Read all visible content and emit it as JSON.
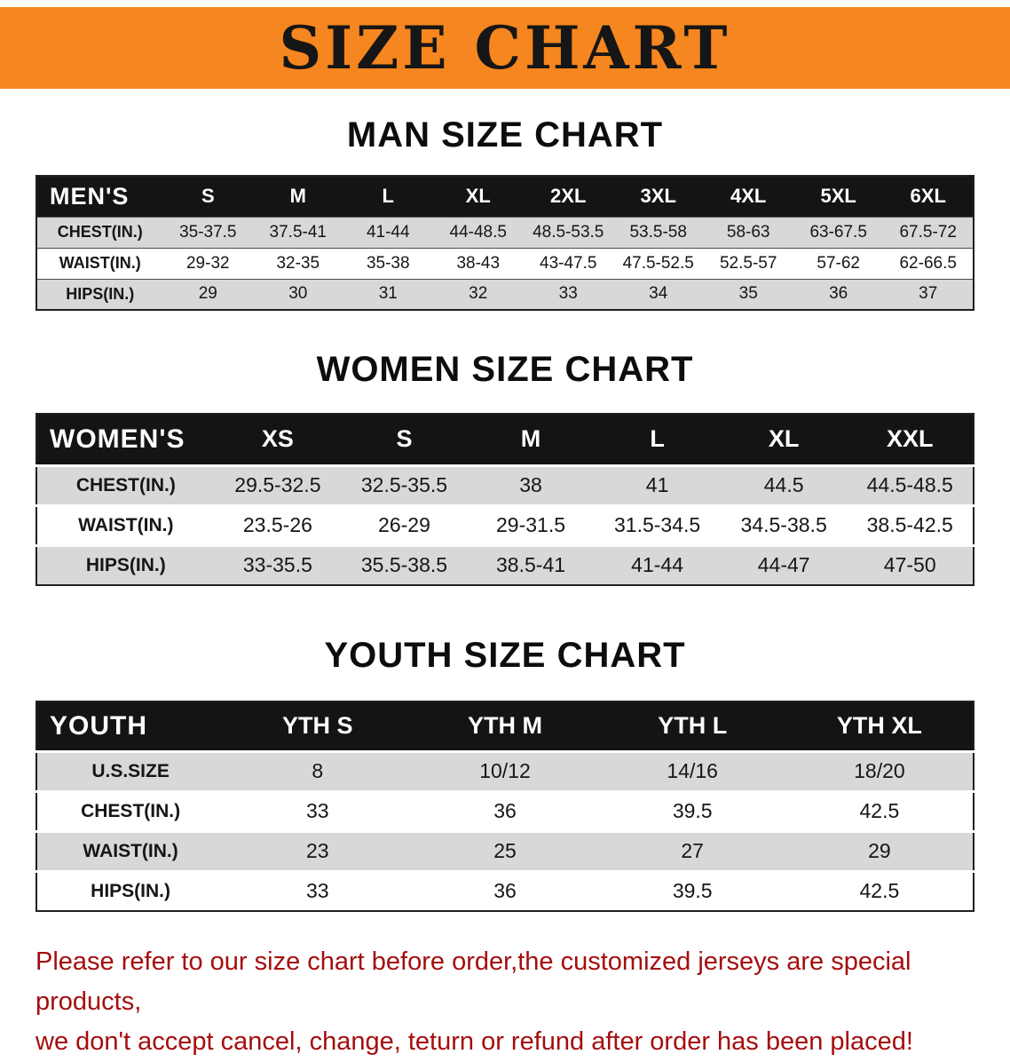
{
  "banner": {
    "title": "SIZE CHART"
  },
  "colors": {
    "banner_bg": "#F6861F",
    "header_bg": "#141414",
    "row_alt": "#D8D8D8",
    "disclaimer_red": "#A40E0E"
  },
  "sections": [
    {
      "id": "men",
      "heading": "MAN SIZE CHART",
      "corner_label": "MEN'S",
      "columns": [
        "S",
        "M",
        "L",
        "XL",
        "2XL",
        "3XL",
        "4XL",
        "5XL",
        "6XL"
      ],
      "rows": [
        {
          "label": "CHEST(IN.)",
          "values": [
            "35-37.5",
            "37.5-41",
            "41-44",
            "44-48.5",
            "48.5-53.5",
            "53.5-58",
            "58-63",
            "63-67.5",
            "67.5-72"
          ]
        },
        {
          "label": "WAIST(IN.)",
          "values": [
            "29-32",
            "32-35",
            "35-38",
            "38-43",
            "43-47.5",
            "47.5-52.5",
            "52.5-57",
            "57-62",
            "62-66.5"
          ]
        },
        {
          "label": "HIPS(IN.)",
          "values": [
            "29",
            "30",
            "31",
            "32",
            "33",
            "34",
            "35",
            "36",
            "37"
          ]
        }
      ]
    },
    {
      "id": "women",
      "heading": "WOMEN SIZE CHART",
      "corner_label": "WOMEN'S",
      "columns": [
        "XS",
        "S",
        "M",
        "L",
        "XL",
        "XXL"
      ],
      "rows": [
        {
          "label": "CHEST(IN.)",
          "values": [
            "29.5-32.5",
            "32.5-35.5",
            "38",
            "41",
            "44.5",
            "44.5-48.5"
          ]
        },
        {
          "label": "WAIST(IN.)",
          "values": [
            "23.5-26",
            "26-29",
            "29-31.5",
            "31.5-34.5",
            "34.5-38.5",
            "38.5-42.5"
          ]
        },
        {
          "label": "HIPS(IN.)",
          "values": [
            "33-35.5",
            "35.5-38.5",
            "38.5-41",
            "41-44",
            "44-47",
            "47-50"
          ]
        }
      ]
    },
    {
      "id": "youth",
      "heading": "YOUTH SIZE CHART",
      "corner_label": "YOUTH",
      "columns": [
        "YTH S",
        "YTH M",
        "YTH L",
        "YTH XL"
      ],
      "rows": [
        {
          "label": "U.S.SIZE",
          "values": [
            "8",
            "10/12",
            "14/16",
            "18/20"
          ]
        },
        {
          "label": "CHEST(IN.)",
          "values": [
            "33",
            "36",
            "39.5",
            "42.5"
          ]
        },
        {
          "label": "WAIST(IN.)",
          "values": [
            "23",
            "25",
            "27",
            "29"
          ]
        },
        {
          "label": "HIPS(IN.)",
          "values": [
            "33",
            "36",
            "39.5",
            "42.5"
          ]
        }
      ]
    }
  ],
  "disclaimer": {
    "line1": "Please refer to our size chart before order,the customized jerseys are special products,",
    "line2": "we don't accept cancel, change, teturn or refund after order has been placed!"
  }
}
